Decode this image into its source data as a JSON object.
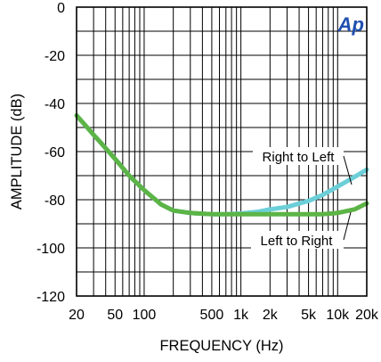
{
  "chart_data": {
    "type": "line",
    "xlabel": "FREQUENCY (Hz)",
    "ylabel": "AMPLITUDE (dB)",
    "xscale": "log",
    "xlim": [
      20,
      20000
    ],
    "ylim": [
      -120,
      0
    ],
    "grid": true,
    "x_ticks": [
      {
        "value": 20,
        "label": "20"
      },
      {
        "value": 50,
        "label": "50"
      },
      {
        "value": 100,
        "label": "100"
      },
      {
        "value": 500,
        "label": "500"
      },
      {
        "value": 1000,
        "label": "1k"
      },
      {
        "value": 2000,
        "label": "2k"
      },
      {
        "value": 5000,
        "label": "5k"
      },
      {
        "value": 10000,
        "label": "10k"
      },
      {
        "value": 20000,
        "label": "20k"
      }
    ],
    "y_ticks": [
      {
        "value": 0,
        "label": "0"
      },
      {
        "value": -20,
        "label": "-20"
      },
      {
        "value": -40,
        "label": "-40"
      },
      {
        "value": -60,
        "label": "-60"
      },
      {
        "value": -80,
        "label": "-80"
      },
      {
        "value": -100,
        "label": "-100"
      },
      {
        "value": -120,
        "label": "-120"
      }
    ],
    "series": [
      {
        "name": "Right to Left",
        "color": "#6ccfd8",
        "x": [
          20,
          30,
          50,
          70,
          100,
          150,
          200,
          300,
          500,
          700,
          1000,
          1500,
          2000,
          3000,
          5000,
          7000,
          10000,
          15000,
          20000
        ],
        "y": [
          -45,
          -53,
          -63,
          -70,
          -76,
          -82,
          -84.5,
          -85.5,
          -86,
          -86,
          -85.7,
          -85,
          -84,
          -83,
          -80.5,
          -78,
          -74.5,
          -70.5,
          -67.5
        ]
      },
      {
        "name": "Left to Right",
        "color": "#5cb446",
        "x": [
          20,
          30,
          50,
          70,
          100,
          150,
          200,
          300,
          500,
          700,
          1000,
          1500,
          2000,
          3000,
          5000,
          7000,
          10000,
          15000,
          20000
        ],
        "y": [
          -45,
          -53,
          -63,
          -70,
          -76,
          -82,
          -84.5,
          -85.5,
          -86,
          -86,
          -86,
          -86,
          -86,
          -86,
          -86,
          -86,
          -85.5,
          -84,
          -81.5
        ]
      }
    ]
  },
  "logo": {
    "text": "Ap",
    "color": "#1f4fb0"
  }
}
